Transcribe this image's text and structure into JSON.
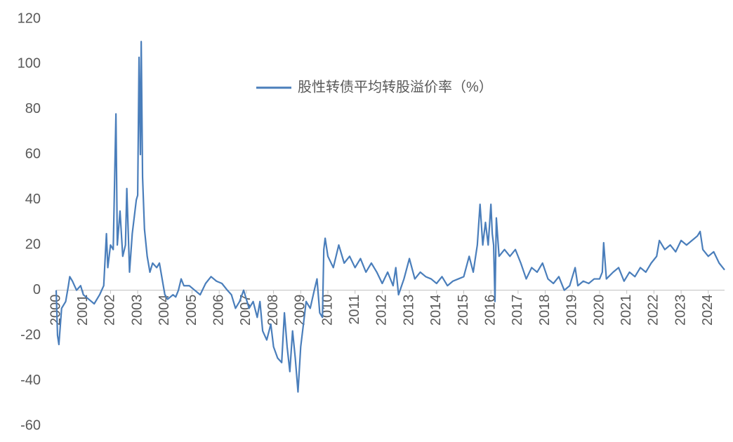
{
  "chart_data": {
    "type": "line",
    "series": [
      {
        "name": "股性转债平均转股溢价率（%）",
        "color": "#4a7ebb",
        "x": [
          2000.0,
          2000.05,
          2000.1,
          2000.2,
          2000.35,
          2000.45,
          2000.5,
          2000.6,
          2000.75,
          2000.9,
          2001.0,
          2001.2,
          2001.4,
          2001.6,
          2001.75,
          2001.85,
          2001.9,
          2002.0,
          2002.1,
          2002.2,
          2002.25,
          2002.35,
          2002.45,
          2002.55,
          2002.6,
          2002.7,
          2002.8,
          2002.9,
          2002.95,
          2003.0,
          2003.05,
          2003.1,
          2003.13,
          2003.18,
          2003.25,
          2003.35,
          2003.45,
          2003.55,
          2003.7,
          2003.8,
          2003.9,
          2004.0,
          2004.1,
          2004.3,
          2004.4,
          2004.5,
          2004.6,
          2004.7,
          2004.9,
          2005.1,
          2005.3,
          2005.5,
          2005.7,
          2005.9,
          2006.1,
          2006.3,
          2006.45,
          2006.6,
          2006.75,
          2006.9,
          2007.1,
          2007.25,
          2007.4,
          2007.5,
          2007.6,
          2007.75,
          2007.9,
          2008.0,
          2008.15,
          2008.3,
          2008.4,
          2008.5,
          2008.6,
          2008.7,
          2008.8,
          2008.9,
          2009.0,
          2009.1,
          2009.2,
          2009.35,
          2009.5,
          2009.6,
          2009.7,
          2009.8,
          2009.85,
          2009.9,
          2010.0,
          2010.2,
          2010.4,
          2010.6,
          2010.8,
          2011.0,
          2011.2,
          2011.4,
          2011.6,
          2011.8,
          2012.0,
          2012.2,
          2012.4,
          2012.5,
          2012.6,
          2012.8,
          2013.0,
          2013.2,
          2013.4,
          2013.6,
          2013.8,
          2014.0,
          2014.2,
          2014.4,
          2014.6,
          2014.8,
          2015.0,
          2015.2,
          2015.35,
          2015.5,
          2015.6,
          2015.7,
          2015.8,
          2015.9,
          2016.0,
          2016.05,
          2016.1,
          2016.15,
          2016.2,
          2016.3,
          2016.5,
          2016.7,
          2016.9,
          2017.1,
          2017.3,
          2017.5,
          2017.7,
          2017.9,
          2018.1,
          2018.3,
          2018.5,
          2018.7,
          2018.9,
          2019.1,
          2019.2,
          2019.4,
          2019.6,
          2019.8,
          2020.0,
          2020.1,
          2020.15,
          2020.25,
          2020.5,
          2020.7,
          2020.9,
          2021.1,
          2021.3,
          2021.5,
          2021.7,
          2021.9,
          2022.1,
          2022.2,
          2022.4,
          2022.6,
          2022.8,
          2023.0,
          2023.2,
          2023.4,
          2023.6,
          2023.7,
          2023.8,
          2024.0,
          2024.2,
          2024.4,
          2024.6
        ],
        "values": [
          0,
          -20,
          -24,
          -8,
          -5,
          2,
          6,
          4,
          0,
          2,
          -2,
          -4,
          -6,
          -2,
          2,
          25,
          10,
          20,
          18,
          78,
          20,
          35,
          15,
          20,
          45,
          8,
          25,
          35,
          40,
          42,
          103,
          60,
          110,
          50,
          27,
          15,
          8,
          12,
          10,
          12,
          5,
          -2,
          -4,
          -2,
          -3,
          0,
          5,
          2,
          2,
          0,
          -2,
          3,
          6,
          4,
          3,
          0,
          -2,
          -8,
          -5,
          0,
          -8,
          -5,
          -12,
          -5,
          -18,
          -22,
          -15,
          -25,
          -30,
          -32,
          -10,
          -25,
          -36,
          -18,
          -30,
          -45,
          -25,
          -15,
          -5,
          -8,
          0,
          5,
          -10,
          -12,
          18,
          23,
          15,
          10,
          20,
          12,
          15,
          10,
          14,
          8,
          12,
          8,
          3,
          8,
          2,
          10,
          -2,
          5,
          14,
          5,
          8,
          6,
          5,
          3,
          6,
          2,
          4,
          5,
          6,
          15,
          8,
          20,
          38,
          20,
          30,
          20,
          38,
          25,
          20,
          -5,
          32,
          15,
          18,
          15,
          18,
          12,
          5,
          10,
          8,
          12,
          5,
          3,
          6,
          0,
          2,
          10,
          2,
          4,
          3,
          5,
          5,
          8,
          21,
          5,
          8,
          10,
          4,
          8,
          6,
          10,
          8,
          12,
          15,
          22,
          18,
          20,
          17,
          22,
          20,
          22,
          24,
          26,
          18,
          15,
          17,
          12,
          9
        ]
      }
    ],
    "xlim": [
      2000,
      2024.6
    ],
    "xticks": [
      2000,
      2001,
      2002,
      2003,
      2004,
      2005,
      2006,
      2007,
      2008,
      2009,
      2010,
      2011,
      2012,
      2013,
      2014,
      2015,
      2016,
      2017,
      2018,
      2019,
      2020,
      2021,
      2022,
      2023,
      2024
    ],
    "ylim": [
      -60,
      120
    ],
    "yticks": [
      -60,
      -40,
      -20,
      0,
      20,
      40,
      60,
      80,
      100,
      120
    ]
  }
}
